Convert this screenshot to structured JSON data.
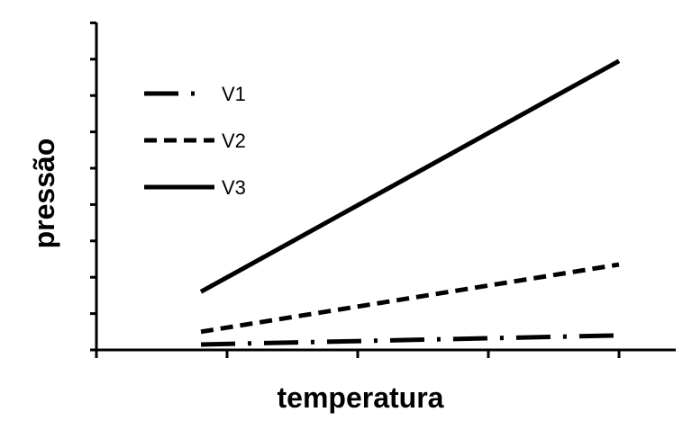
{
  "chart_data": {
    "type": "line",
    "xlabel": "temperatura",
    "ylabel": "pressão",
    "xlim": [
      0,
      5
    ],
    "ylim": [
      0,
      9
    ],
    "x_ticks": [
      0,
      1,
      2,
      3,
      4,
      5
    ],
    "y_ticks": [
      0,
      1,
      2,
      3,
      4,
      5,
      6,
      7,
      8,
      9
    ],
    "grid": false,
    "legend_position": "top-left",
    "series": [
      {
        "name": "V1",
        "style": "dash-dot",
        "x": [
          0.8,
          4.0
        ],
        "y": [
          0.15,
          0.4
        ]
      },
      {
        "name": "V2",
        "style": "dashed",
        "x": [
          0.8,
          4.0
        ],
        "y": [
          0.5,
          2.35
        ]
      },
      {
        "name": "V3",
        "style": "solid",
        "x": [
          0.8,
          4.0
        ],
        "y": [
          1.6,
          7.95
        ]
      }
    ]
  }
}
